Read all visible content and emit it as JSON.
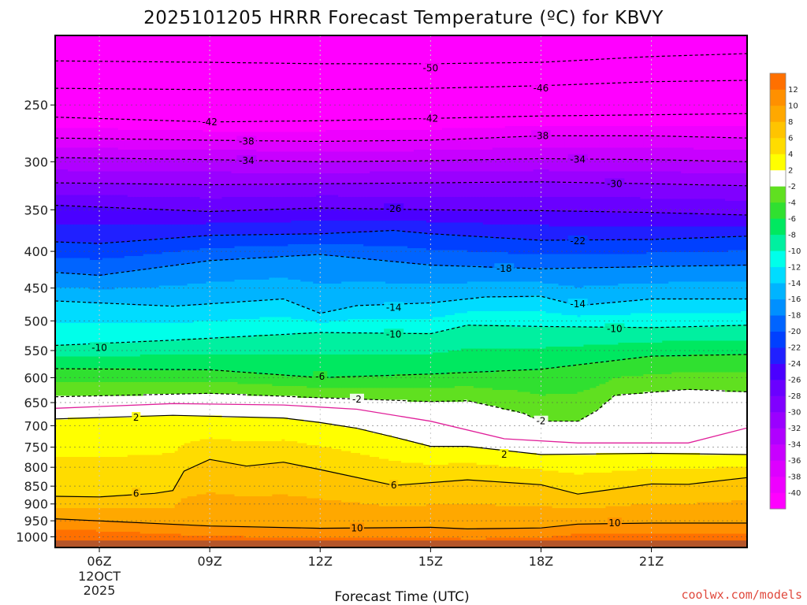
{
  "chart_data": {
    "type": "heatmap",
    "title": "2025101205 HRRR Forecast Temperature (ºC) for KBVY",
    "xlabel": "Forecast Time (UTC)",
    "ylabel": "",
    "credit": "coolwx.com/models",
    "x_range_hours_utc": [
      4.8,
      23.6
    ],
    "y_range_hpa": [
      200,
      1035
    ],
    "y_scale": "log-pressure (inverted, surface at bottom)",
    "grid": "dotted",
    "x_ticks": [
      {
        "hour": 6,
        "label": "06Z",
        "date_label_1": "12OCT",
        "date_label_2": "2025"
      },
      {
        "hour": 9,
        "label": "09Z"
      },
      {
        "hour": 12,
        "label": "12Z"
      },
      {
        "hour": 15,
        "label": "15Z"
      },
      {
        "hour": 18,
        "label": "18Z"
      },
      {
        "hour": 21,
        "label": "21Z"
      }
    ],
    "y_ticks": [
      {
        "p": 250,
        "label": "250"
      },
      {
        "p": 300,
        "label": "300"
      },
      {
        "p": 350,
        "label": "350"
      },
      {
        "p": 400,
        "label": "400"
      },
      {
        "p": 450,
        "label": "450"
      },
      {
        "p": 500,
        "label": "500"
      },
      {
        "p": 550,
        "label": "550"
      },
      {
        "p": 600,
        "label": "600"
      },
      {
        "p": 650,
        "label": "650"
      },
      {
        "p": 700,
        "label": "700"
      },
      {
        "p": 750,
        "label": "750"
      },
      {
        "p": 800,
        "label": "800"
      },
      {
        "p": 850,
        "label": "850"
      },
      {
        "p": 900,
        "label": "900"
      },
      {
        "p": 950,
        "label": "950"
      },
      {
        "p": 1000,
        "label": "1000"
      }
    ],
    "colorbar": {
      "levels": [
        -42,
        -40,
        -38,
        -36,
        -34,
        -32,
        -30,
        -28,
        -26,
        -24,
        -22,
        -20,
        -18,
        -16,
        -14,
        -12,
        -10,
        -8,
        -6,
        -4,
        -2,
        2,
        4,
        6,
        8,
        10,
        12,
        14
      ],
      "labels": [
        "-40",
        "-38",
        "-36",
        "-34",
        "-32",
        "-30",
        "-28",
        "-26",
        "-24",
        "-22",
        "-20",
        "-18",
        "-16",
        "-14",
        "-12",
        "-10",
        "-8",
        "-6",
        "-4",
        "-2",
        "2",
        "4",
        "6",
        "8",
        "10",
        "12"
      ],
      "colors": [
        "#ff00ff",
        "#ee00ff",
        "#dd00ff",
        "#c800ff",
        "#b000ff",
        "#9a00ff",
        "#8000ff",
        "#6a00ff",
        "#4a00ff",
        "#2020ff",
        "#0040ff",
        "#0064ff",
        "#0090ff",
        "#00b4ff",
        "#00dcff",
        "#00ffea",
        "#00f0a0",
        "#00e860",
        "#30e030",
        "#60e020",
        "#ffffff",
        "#ffff00",
        "#ffdc00",
        "#ffc400",
        "#ffa800",
        "#ff9000",
        "#ff7000"
      ]
    },
    "isotherms": [
      {
        "value": -50,
        "label": "-50",
        "style": "dashed",
        "points": [
          [
            4.8,
            217
          ],
          [
            9,
            218
          ],
          [
            12,
            219
          ],
          [
            15,
            219
          ],
          [
            18,
            218
          ],
          [
            21,
            214
          ],
          [
            23.6,
            212
          ]
        ],
        "label_at": [
          [
            15,
            222
          ]
        ]
      },
      {
        "value": -46,
        "label": "-46",
        "style": "dashed",
        "points": [
          [
            4.8,
            237
          ],
          [
            9,
            238
          ],
          [
            12,
            238
          ],
          [
            15,
            237
          ],
          [
            18,
            235
          ],
          [
            21,
            232
          ],
          [
            23.6,
            231
          ]
        ],
        "label_at": [
          [
            18,
            237
          ]
        ]
      },
      {
        "value": -42,
        "label": "-42",
        "style": "dashed",
        "points": [
          [
            4.8,
            260
          ],
          [
            9,
            264
          ],
          [
            12,
            263
          ],
          [
            15,
            261
          ],
          [
            18,
            259
          ],
          [
            21,
            258
          ],
          [
            23.6,
            257
          ]
        ],
        "label_at": [
          [
            9,
            264
          ],
          [
            15,
            261
          ]
        ]
      },
      {
        "value": -38,
        "label": "-38",
        "style": "dashed",
        "points": [
          [
            4.8,
            278
          ],
          [
            9,
            280
          ],
          [
            12,
            281
          ],
          [
            15,
            280
          ],
          [
            18,
            276
          ],
          [
            21,
            276
          ],
          [
            23.6,
            278
          ]
        ],
        "label_at": [
          [
            10,
            281
          ],
          [
            18,
            276
          ]
        ]
      },
      {
        "value": -34,
        "label": "-34",
        "style": "dashed",
        "points": [
          [
            4.8,
            296
          ],
          [
            9,
            298
          ],
          [
            12,
            300
          ],
          [
            15,
            299
          ],
          [
            18,
            297
          ],
          [
            21,
            298
          ],
          [
            23.6,
            300
          ]
        ],
        "label_at": [
          [
            10,
            299
          ],
          [
            19,
            298
          ]
        ]
      },
      {
        "value": -30,
        "label": "-30",
        "style": "dashed",
        "points": [
          [
            4.8,
            321
          ],
          [
            9,
            323
          ],
          [
            12,
            322
          ],
          [
            15,
            321
          ],
          [
            18,
            320
          ],
          [
            21,
            322
          ],
          [
            23.6,
            324
          ]
        ],
        "label_at": [
          [
            20,
            322
          ]
        ]
      },
      {
        "value": -26,
        "label": "-26",
        "style": "dashed",
        "points": [
          [
            4.8,
            345
          ],
          [
            9,
            352
          ],
          [
            12,
            348
          ],
          [
            15,
            350
          ],
          [
            18,
            351
          ],
          [
            21,
            353
          ],
          [
            23.6,
            356
          ]
        ],
        "label_at": [
          [
            14,
            349
          ]
        ]
      },
      {
        "value": -22,
        "label": "-22",
        "style": "dashed",
        "points": [
          [
            4.8,
            388
          ],
          [
            6,
            390
          ],
          [
            9,
            380
          ],
          [
            12,
            378
          ],
          [
            14,
            374
          ],
          [
            15,
            378
          ],
          [
            18,
            386
          ],
          [
            21,
            385
          ],
          [
            23.6,
            381
          ]
        ],
        "label_at": [
          [
            19,
            387
          ]
        ]
      },
      {
        "value": -18,
        "label": "-18",
        "style": "dashed",
        "points": [
          [
            4.8,
            428
          ],
          [
            6,
            432
          ],
          [
            9,
            412
          ],
          [
            12,
            404
          ],
          [
            15,
            418
          ],
          [
            18,
            423
          ],
          [
            21,
            420
          ],
          [
            23.6,
            418
          ]
        ],
        "label_at": [
          [
            17,
            423
          ]
        ]
      },
      {
        "value": -14,
        "label": "-14",
        "style": "dashed",
        "points": [
          [
            4.8,
            469
          ],
          [
            8,
            477
          ],
          [
            11,
            466
          ],
          [
            12,
            488
          ],
          [
            13,
            476
          ],
          [
            15,
            472
          ],
          [
            16.5,
            463
          ],
          [
            18,
            462
          ],
          [
            19,
            476
          ],
          [
            21,
            466
          ],
          [
            23.6,
            466
          ]
        ],
        "label_at": [
          [
            14,
            479
          ],
          [
            19,
            474
          ]
        ]
      },
      {
        "value": -10,
        "label": "-10",
        "style": "dashed",
        "points": [
          [
            4.8,
            541
          ],
          [
            8,
            532
          ],
          [
            12,
            519
          ],
          [
            15,
            521
          ],
          [
            16,
            507
          ],
          [
            18,
            509
          ],
          [
            21,
            511
          ],
          [
            23.6,
            507
          ]
        ],
        "label_at": [
          [
            6,
            545
          ],
          [
            14,
            522
          ],
          [
            20,
            513
          ]
        ]
      },
      {
        "value": -6,
        "label": "-6",
        "style": "dashed",
        "points": [
          [
            4.8,
            583
          ],
          [
            9,
            585
          ],
          [
            12,
            600
          ],
          [
            15,
            593
          ],
          [
            18,
            584
          ],
          [
            21,
            560
          ],
          [
            23.6,
            557
          ]
        ],
        "label_at": [
          [
            12,
            598
          ]
        ]
      },
      {
        "value": -2,
        "label": "-2",
        "style": "dashed",
        "points": [
          [
            4.8,
            638
          ],
          [
            9,
            631
          ],
          [
            12,
            640
          ],
          [
            15,
            648
          ],
          [
            16,
            646
          ],
          [
            17.5,
            672
          ],
          [
            18,
            690
          ],
          [
            19,
            690
          ],
          [
            19.5,
            668
          ],
          [
            20,
            635
          ],
          [
            22,
            623
          ],
          [
            23.6,
            628
          ]
        ],
        "label_at": [
          [
            13,
            643
          ],
          [
            18,
            690
          ]
        ]
      },
      {
        "value": 0,
        "label": "",
        "style": "magenta",
        "points": [
          [
            4.8,
            662
          ],
          [
            8,
            652
          ],
          [
            11,
            655
          ],
          [
            13,
            664
          ],
          [
            15,
            690
          ],
          [
            17,
            730
          ],
          [
            19,
            740
          ],
          [
            22,
            740
          ],
          [
            23.6,
            705
          ]
        ],
        "label_at": []
      },
      {
        "value": 2,
        "label": "2",
        "style": "solid",
        "points": [
          [
            4.8,
            685
          ],
          [
            8,
            677
          ],
          [
            11,
            683
          ],
          [
            12,
            693
          ],
          [
            13,
            706
          ],
          [
            14,
            726
          ],
          [
            15,
            748
          ],
          [
            16,
            748
          ],
          [
            18,
            768
          ],
          [
            21,
            765
          ],
          [
            23.6,
            768
          ]
        ],
        "label_at": [
          [
            7,
            682
          ],
          [
            17,
            768
          ]
        ]
      },
      {
        "value": 6,
        "label": "6",
        "style": "solid",
        "points": [
          [
            4.8,
            878
          ],
          [
            6,
            880
          ],
          [
            7.5,
            870
          ],
          [
            8,
            862
          ],
          [
            8.3,
            810
          ],
          [
            9,
            780
          ],
          [
            10,
            797
          ],
          [
            11,
            787
          ],
          [
            12,
            806
          ],
          [
            14,
            848
          ],
          [
            16,
            833
          ],
          [
            18,
            846
          ],
          [
            19,
            872
          ],
          [
            21,
            844
          ],
          [
            22,
            845
          ],
          [
            23.6,
            827
          ]
        ],
        "label_at": [
          [
            7,
            870
          ],
          [
            14,
            848
          ]
        ]
      },
      {
        "value": 10,
        "label": "10",
        "style": "solid",
        "points": [
          [
            4.8,
            944
          ],
          [
            9,
            966
          ],
          [
            12,
            973
          ],
          [
            15,
            970
          ],
          [
            16,
            975
          ],
          [
            18,
            972
          ],
          [
            19,
            960
          ],
          [
            21,
            957
          ],
          [
            23.6,
            957
          ]
        ],
        "label_at": [
          [
            13,
            973
          ],
          [
            20,
            957
          ]
        ]
      }
    ]
  }
}
